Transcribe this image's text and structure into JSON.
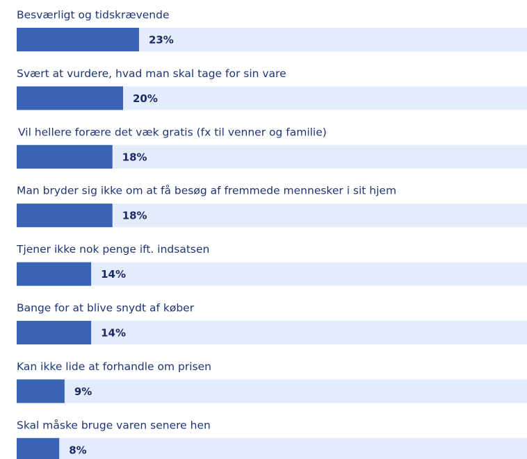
{
  "chart_data": {
    "type": "bar",
    "orientation": "horizontal",
    "categories": [
      "Besværligt og tidskrævende",
      "Svært at vurdere, hvad man skal tage for sin vare",
      "Vil hellere forære det væk gratis (fx til venner og familie)",
      "Man bryder sig ikke om at få besøg af fremmede mennesker i sit hjem",
      "Tjener ikke nok penge ift. indsatsen",
      "Bange for at blive snydt af køber",
      "Kan ikke lide at forhandle om prisen",
      "Skal måske bruge varen senere hen"
    ],
    "values": [
      23,
      20,
      18,
      18,
      14,
      14,
      9,
      8
    ],
    "value_labels": [
      "23%",
      "20%",
      "18%",
      "18%",
      "14%",
      "14%",
      "9%",
      "8%"
    ],
    "color": "#3a63b3",
    "track_color": "#e3ecfa"
  }
}
